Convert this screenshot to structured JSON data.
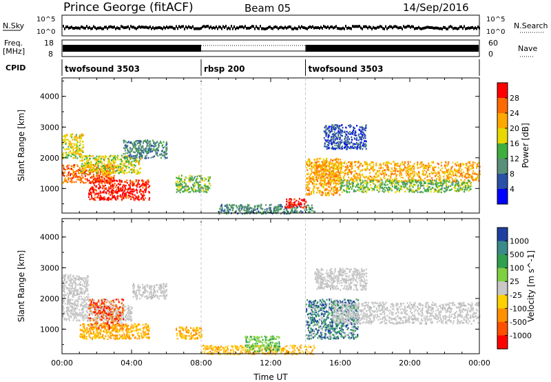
{
  "header": {
    "title": "Prince George (fitACF)",
    "beam": "Beam 05",
    "date": "14/Sep/2016"
  },
  "top_panels": {
    "nsky_label": "N.Sky",
    "nsky_ticks": [
      "10^5",
      "10^0"
    ],
    "nsearch_label": "N.Search",
    "freq_label": "Freq.",
    "freq_unit": "[MHz]",
    "freq_ticks": [
      "18",
      "8"
    ],
    "nave_label": "Nave",
    "nave_ticks": [
      "60",
      "0"
    ],
    "cpid_label": "CPID"
  },
  "cpid_segments": [
    {
      "label": "twofsound 3503",
      "start_h": 0,
      "end_h": 8
    },
    {
      "label": "rbsp 200",
      "start_h": 8,
      "end_h": 14
    },
    {
      "label": "twofsound 3503",
      "start_h": 14,
      "end_h": 24
    }
  ],
  "power_colorbar": {
    "label": "Power [dB]",
    "ticks": [
      "28",
      "24",
      "20",
      "16",
      "12",
      "8",
      "4"
    ],
    "colors": [
      "#ff0000",
      "#ff6a00",
      "#ffa800",
      "#e6d800",
      "#3fae3f",
      "#5a8f7a",
      "#2a50a8",
      "#0000ff"
    ]
  },
  "velocity_colorbar": {
    "label": "Velocity [m s^-1]",
    "ticks": [
      "1000",
      "500",
      "100",
      "25",
      "-25",
      "-100",
      "-500",
      "-1000"
    ],
    "colors": [
      "#1f3fa0",
      "#3a8a8a",
      "#2fa050",
      "#7fd040",
      "#c8c8c8",
      "#ffd000",
      "#ff9000",
      "#ff5000",
      "#ff0000"
    ]
  },
  "chart_data": [
    {
      "type": "heatmap",
      "title": "",
      "xlabel": "",
      "ylabel": "Slant Range [km]",
      "x_unit": "hours UT",
      "xlim": [
        0,
        24
      ],
      "ylim": [
        200,
        4600
      ],
      "yticks": [
        "4000",
        "3000",
        "2000",
        "1000"
      ],
      "z_label": "Power [dB]",
      "scatter_regions": [
        {
          "start_h": 0.0,
          "end_h": 1.2,
          "range_lo": 2000,
          "range_hi": 2800,
          "level": 4
        },
        {
          "start_h": 0.0,
          "end_h": 3.0,
          "range_lo": 1200,
          "range_hi": 1800,
          "level": 6
        },
        {
          "start_h": 1.0,
          "end_h": 4.5,
          "range_lo": 1500,
          "range_hi": 2100,
          "level": 4
        },
        {
          "start_h": 1.5,
          "end_h": 5.0,
          "range_lo": 650,
          "range_hi": 1300,
          "level": 7
        },
        {
          "start_h": 3.5,
          "end_h": 6.0,
          "range_lo": 2000,
          "range_hi": 2600,
          "level": 2
        },
        {
          "start_h": 6.5,
          "end_h": 8.5,
          "range_lo": 900,
          "range_hi": 1450,
          "level": 3
        },
        {
          "start_h": 9.0,
          "end_h": 14.5,
          "range_lo": 200,
          "range_hi": 500,
          "level": 2
        },
        {
          "start_h": 12.8,
          "end_h": 14.0,
          "range_lo": 400,
          "range_hi": 700,
          "level": 7
        },
        {
          "start_h": 14.0,
          "end_h": 16.0,
          "range_lo": 800,
          "range_hi": 2000,
          "level": 5
        },
        {
          "start_h": 14.5,
          "end_h": 24.0,
          "range_lo": 1250,
          "range_hi": 1900,
          "level": 5
        },
        {
          "start_h": 16.0,
          "end_h": 23.5,
          "range_lo": 900,
          "range_hi": 1300,
          "level": 3
        },
        {
          "start_h": 15.0,
          "end_h": 17.5,
          "range_lo": 2300,
          "range_hi": 3100,
          "level": 1
        }
      ]
    },
    {
      "type": "heatmap",
      "title": "",
      "xlabel": "Time UT",
      "ylabel": "Slant Range [km]",
      "x_unit": "hours UT",
      "xlim": [
        0,
        24
      ],
      "ylim": [
        200,
        4600
      ],
      "xticks": [
        "00:00",
        "04:00",
        "08:00",
        "12:00",
        "16:00",
        "20:00",
        "00:00"
      ],
      "yticks": [
        "4000",
        "3000",
        "2000",
        "1000"
      ],
      "z_label": "Velocity [m s^-1]",
      "scatter_regions": [
        {
          "start_h": 0.0,
          "end_h": 1.5,
          "range_lo": 1800,
          "range_hi": 2800,
          "class": "gray"
        },
        {
          "start_h": 0.0,
          "end_h": 4.0,
          "range_lo": 1300,
          "range_hi": 1800,
          "class": "gray"
        },
        {
          "start_h": 1.5,
          "end_h": 3.5,
          "range_lo": 1000,
          "range_hi": 2000,
          "class": "negative-high"
        },
        {
          "start_h": 1.0,
          "end_h": 5.0,
          "range_lo": 700,
          "range_hi": 1200,
          "class": "negative"
        },
        {
          "start_h": 4.0,
          "end_h": 6.0,
          "range_lo": 2000,
          "range_hi": 2500,
          "class": "gray"
        },
        {
          "start_h": 6.5,
          "end_h": 8.0,
          "range_lo": 700,
          "range_hi": 1100,
          "class": "negative"
        },
        {
          "start_h": 8.0,
          "end_h": 14.5,
          "range_lo": 200,
          "range_hi": 500,
          "class": "negative-low"
        },
        {
          "start_h": 10.5,
          "end_h": 12.5,
          "range_lo": 300,
          "range_hi": 800,
          "class": "positive"
        },
        {
          "start_h": 14.0,
          "end_h": 17.0,
          "range_lo": 700,
          "range_hi": 2000,
          "class": "positive-high"
        },
        {
          "start_h": 15.5,
          "end_h": 24.0,
          "range_lo": 1200,
          "range_hi": 1900,
          "class": "gray"
        },
        {
          "start_h": 14.5,
          "end_h": 17.5,
          "range_lo": 2300,
          "range_hi": 3000,
          "class": "gray"
        }
      ]
    }
  ]
}
